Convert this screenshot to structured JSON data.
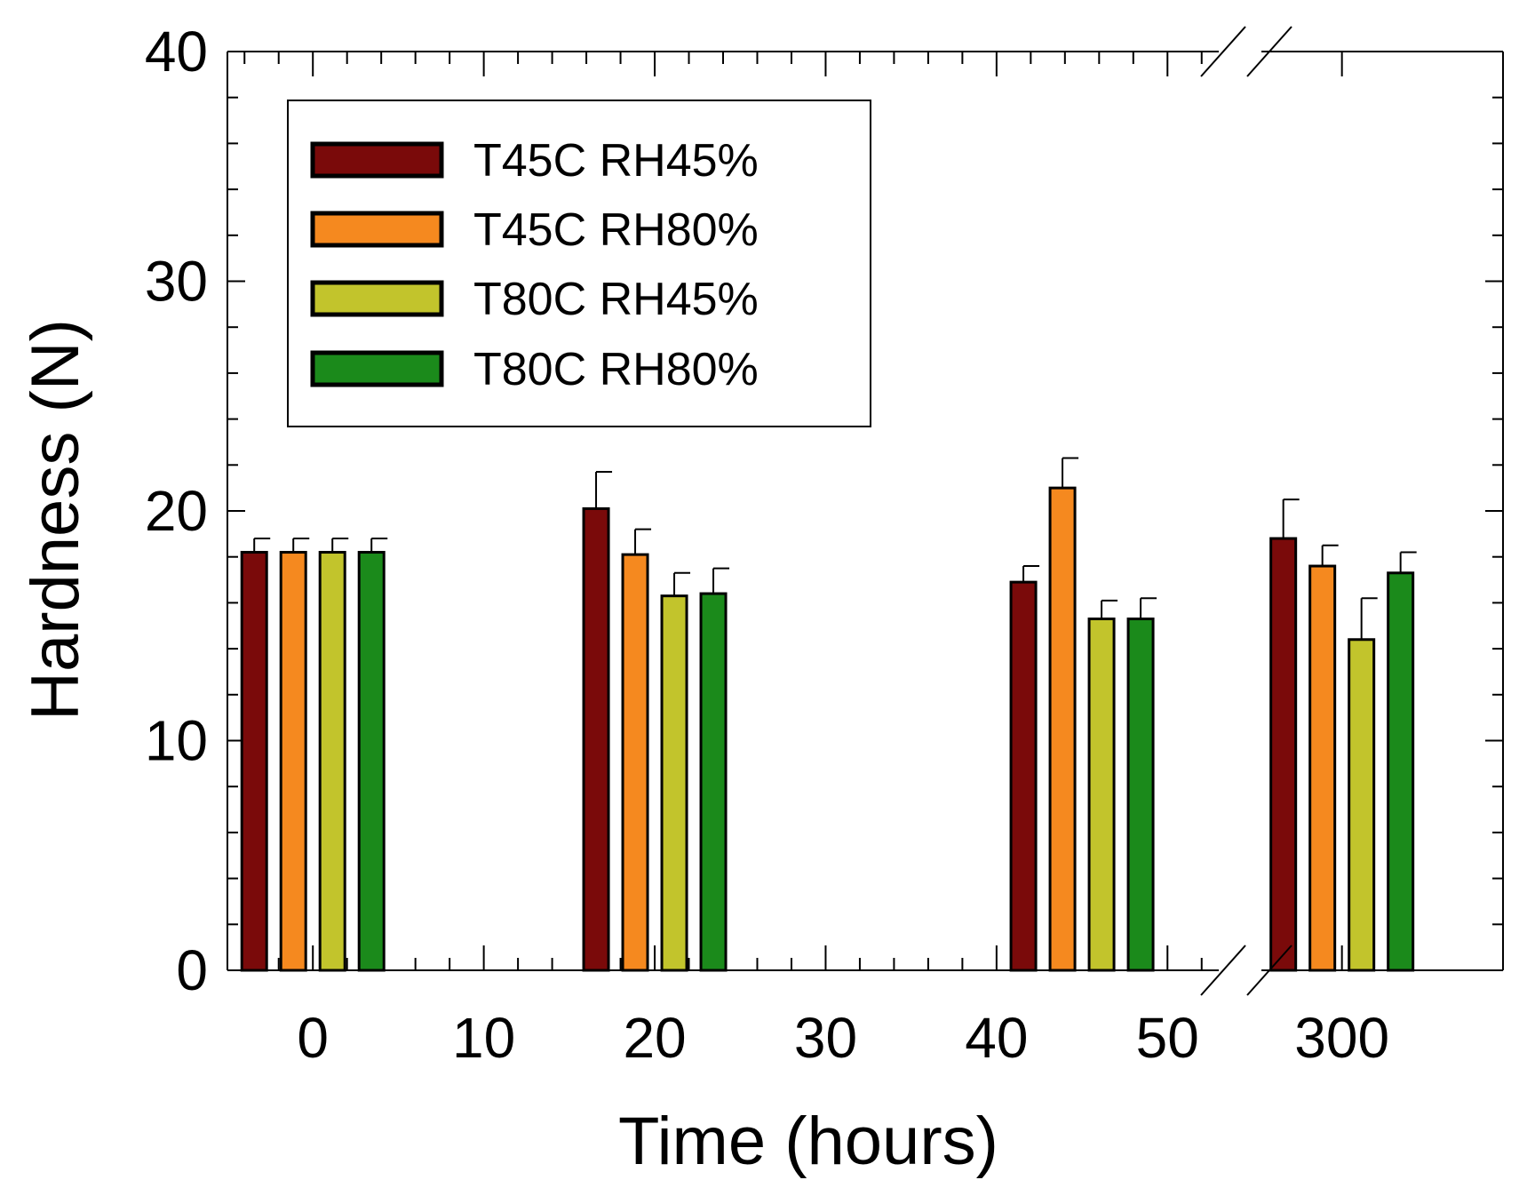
{
  "chart_data": {
    "type": "bar",
    "title": "",
    "xlabel": "Time (hours)",
    "ylabel": "Hardness (N)",
    "ylim": [
      0,
      40
    ],
    "yticks": [
      "0",
      "10",
      "20",
      "30",
      "40"
    ],
    "xlim_segment1": [
      -5,
      53
    ],
    "xlim_segment2": [
      290,
      320
    ],
    "xticks_segment1": [
      {
        "value": 0,
        "label": "0"
      },
      {
        "value": 10,
        "label": "10"
      },
      {
        "value": 20,
        "label": "20"
      },
      {
        "value": 30,
        "label": "30"
      },
      {
        "value": 40,
        "label": "40"
      },
      {
        "value": 50,
        "label": "50"
      }
    ],
    "xticks_segment2": [
      {
        "value": 300,
        "label": "300"
      }
    ],
    "axis_break": true,
    "groups": [
      0,
      20,
      45,
      300
    ],
    "series": [
      {
        "name": "T45C RH45%",
        "color": "#7a0a0a",
        "values": [
          18.2,
          20.1,
          16.9,
          18.8
        ],
        "errors": [
          0.6,
          1.6,
          0.7,
          1.7
        ]
      },
      {
        "name": "T45C RH80%",
        "color": "#f5891f",
        "values": [
          18.2,
          18.1,
          21.0,
          17.6
        ],
        "errors": [
          0.6,
          1.1,
          1.3,
          0.9
        ]
      },
      {
        "name": "T80C RH45%",
        "color": "#c2c42c",
        "values": [
          18.2,
          16.3,
          15.3,
          14.4
        ],
        "errors": [
          0.6,
          1.0,
          0.8,
          1.8
        ]
      },
      {
        "name": "T80C RH80%",
        "color": "#1b8a1b",
        "values": [
          18.2,
          16.4,
          15.3,
          17.3
        ],
        "errors": [
          0.6,
          1.1,
          0.9,
          0.9
        ]
      }
    ],
    "legend_position": "top-left",
    "grid": false
  }
}
